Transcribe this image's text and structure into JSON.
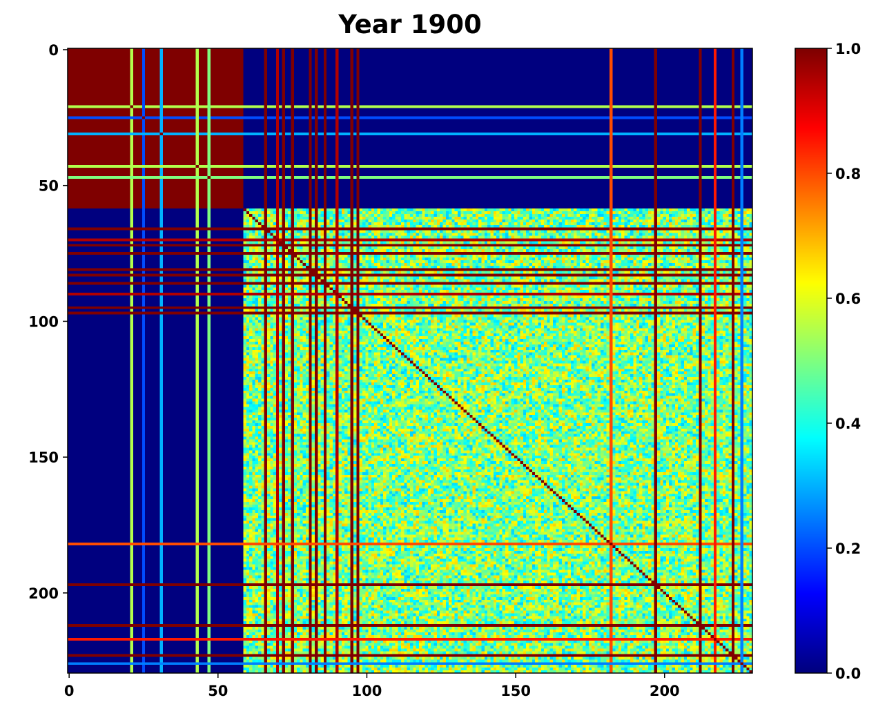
{
  "chart_data": {
    "type": "heatmap",
    "title": "Year 1900",
    "xlabel": "",
    "ylabel": "",
    "matrix_size": 230,
    "x_ticks": [
      "0",
      "50",
      "100",
      "150",
      "200"
    ],
    "y_ticks": [
      "0",
      "50",
      "100",
      "150",
      "200"
    ],
    "xlim": [
      0,
      230
    ],
    "ylim": [
      230,
      0
    ],
    "colorbar": {
      "colormap": "jet",
      "range": [
        0.0,
        1.0
      ],
      "ticks": [
        "0.0",
        "0.2",
        "0.4",
        "0.6",
        "0.8",
        "1.0"
      ]
    },
    "blocks": [
      {
        "rows": [
          0,
          59
        ],
        "cols": [
          0,
          59
        ],
        "value": 1.0
      },
      {
        "rows": [
          59,
          230
        ],
        "cols": [
          59,
          230
        ],
        "value": 0.5
      },
      {
        "rows": [
          0,
          59
        ],
        "cols": [
          59,
          230
        ],
        "value": 0.0
      },
      {
        "rows": [
          59,
          230
        ],
        "cols": [
          0,
          59
        ],
        "value": 0.0
      }
    ],
    "diagonal_value": 1.0,
    "highlighted_indices": [
      {
        "index": 21,
        "value": 0.55
      },
      {
        "index": 25,
        "value": 0.2
      },
      {
        "index": 31,
        "value": 0.3
      },
      {
        "index": 43,
        "value": 0.55
      },
      {
        "index": 47,
        "value": 0.5
      },
      {
        "index": 66,
        "value": 1.0
      },
      {
        "index": 70,
        "value": 0.95
      },
      {
        "index": 72,
        "value": 1.0
      },
      {
        "index": 75,
        "value": 1.0
      },
      {
        "index": 81,
        "value": 1.0
      },
      {
        "index": 83,
        "value": 1.0
      },
      {
        "index": 86,
        "value": 1.0
      },
      {
        "index": 90,
        "value": 0.95
      },
      {
        "index": 95,
        "value": 1.0
      },
      {
        "index": 97,
        "value": 1.0
      },
      {
        "index": 182,
        "value": 0.8
      },
      {
        "index": 197,
        "value": 1.0
      },
      {
        "index": 212,
        "value": 1.0
      },
      {
        "index": 217,
        "value": 0.85
      },
      {
        "index": 223,
        "value": 1.0
      },
      {
        "index": 226,
        "value": 0.25
      }
    ]
  },
  "colors": {
    "jet_stops": [
      "#00007f",
      "#0000ff",
      "#007fff",
      "#00ffff",
      "#7fff7f",
      "#ffff00",
      "#ff7f00",
      "#ff0000",
      "#7f0000"
    ]
  }
}
